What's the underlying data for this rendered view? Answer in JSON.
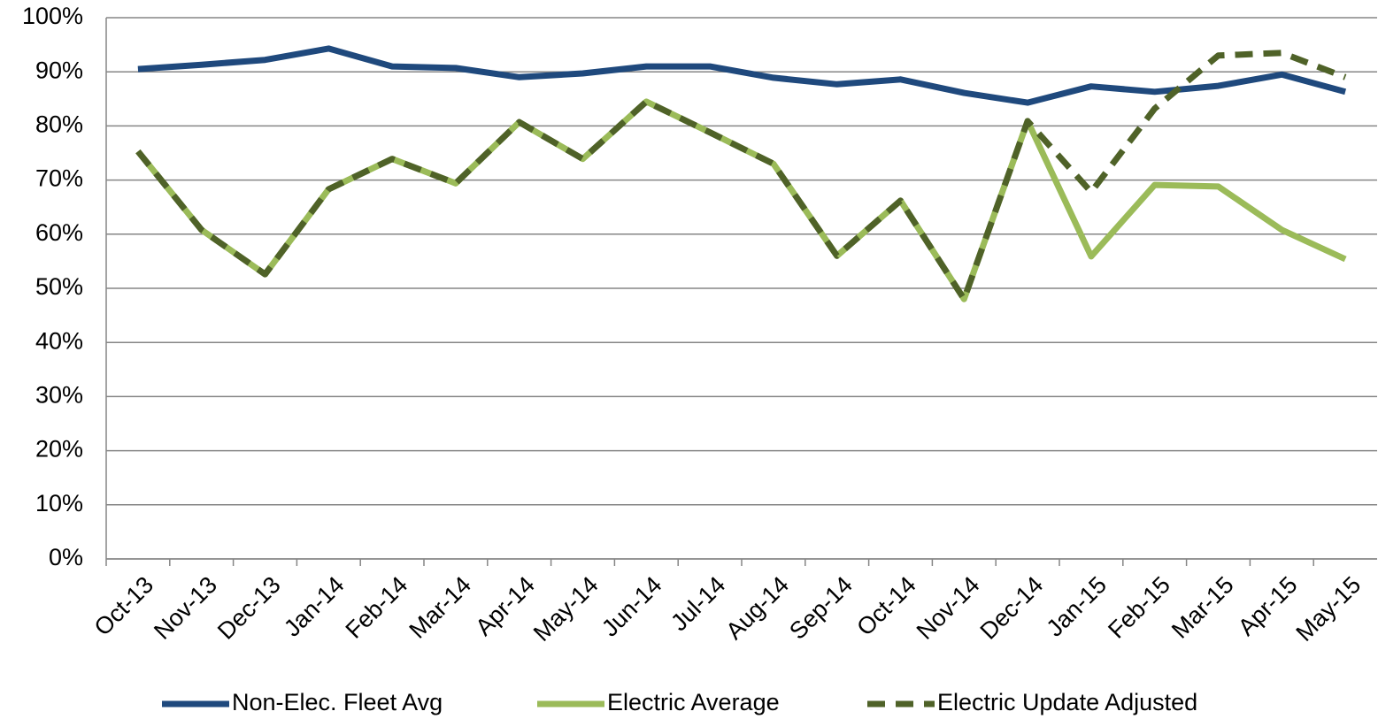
{
  "chart_data": {
    "type": "line",
    "categories": [
      "Oct-13",
      "Nov-13",
      "Dec-13",
      "Jan-14",
      "Feb-14",
      "Mar-14",
      "Apr-14",
      "May-14",
      "Jun-14",
      "Jul-14",
      "Aug-14",
      "Sep-14",
      "Oct-14",
      "Nov-14",
      "Dec-14",
      "Jan-15",
      "Feb-15",
      "Mar-15",
      "Apr-15",
      "May-15"
    ],
    "series": [
      {
        "name": "Non-Elec. Fleet Avg",
        "color": "#1f497d",
        "values": [
          90.5,
          91.3,
          92.2,
          94.3,
          91,
          90.7,
          89,
          89.7,
          91,
          91,
          88.9,
          87.7,
          88.6,
          86.1,
          84.3,
          87.3,
          86.3,
          87.4,
          89.5,
          86.3
        ]
      },
      {
        "name": "Electric Average",
        "color": "#9bbb59",
        "values": [
          75.3,
          60.8,
          52.6,
          68.3,
          73.9,
          69.4,
          80.7,
          73.9,
          84.5,
          78.8,
          73,
          56,
          66.2,
          48,
          80.9,
          55.9,
          69.1,
          68.8,
          60.8,
          55.4
        ]
      },
      {
        "name": "Electric Update Adjusted",
        "color": "#4f6228",
        "dashed": true,
        "values": [
          75.3,
          60.8,
          52.6,
          68.3,
          73.9,
          69.4,
          80.7,
          73.9,
          84.5,
          78.8,
          73,
          56,
          66.2,
          48,
          80.9,
          67.8,
          83.2,
          93,
          93.5,
          89
        ]
      }
    ],
    "ylim": [
      0,
      100
    ],
    "yticks": [
      {
        "value": 0,
        "label": "0%"
      },
      {
        "value": 10,
        "label": "10%"
      },
      {
        "value": 20,
        "label": "20%"
      },
      {
        "value": 30,
        "label": "30%"
      },
      {
        "value": 40,
        "label": "40%"
      },
      {
        "value": 50,
        "label": "50%"
      },
      {
        "value": 60,
        "label": "60%"
      },
      {
        "value": 70,
        "label": "70%"
      },
      {
        "value": 80,
        "label": "80%"
      },
      {
        "value": 90,
        "label": "90%"
      },
      {
        "value": 100,
        "label": "100%"
      }
    ],
    "grid": true,
    "legend": "bottom"
  }
}
